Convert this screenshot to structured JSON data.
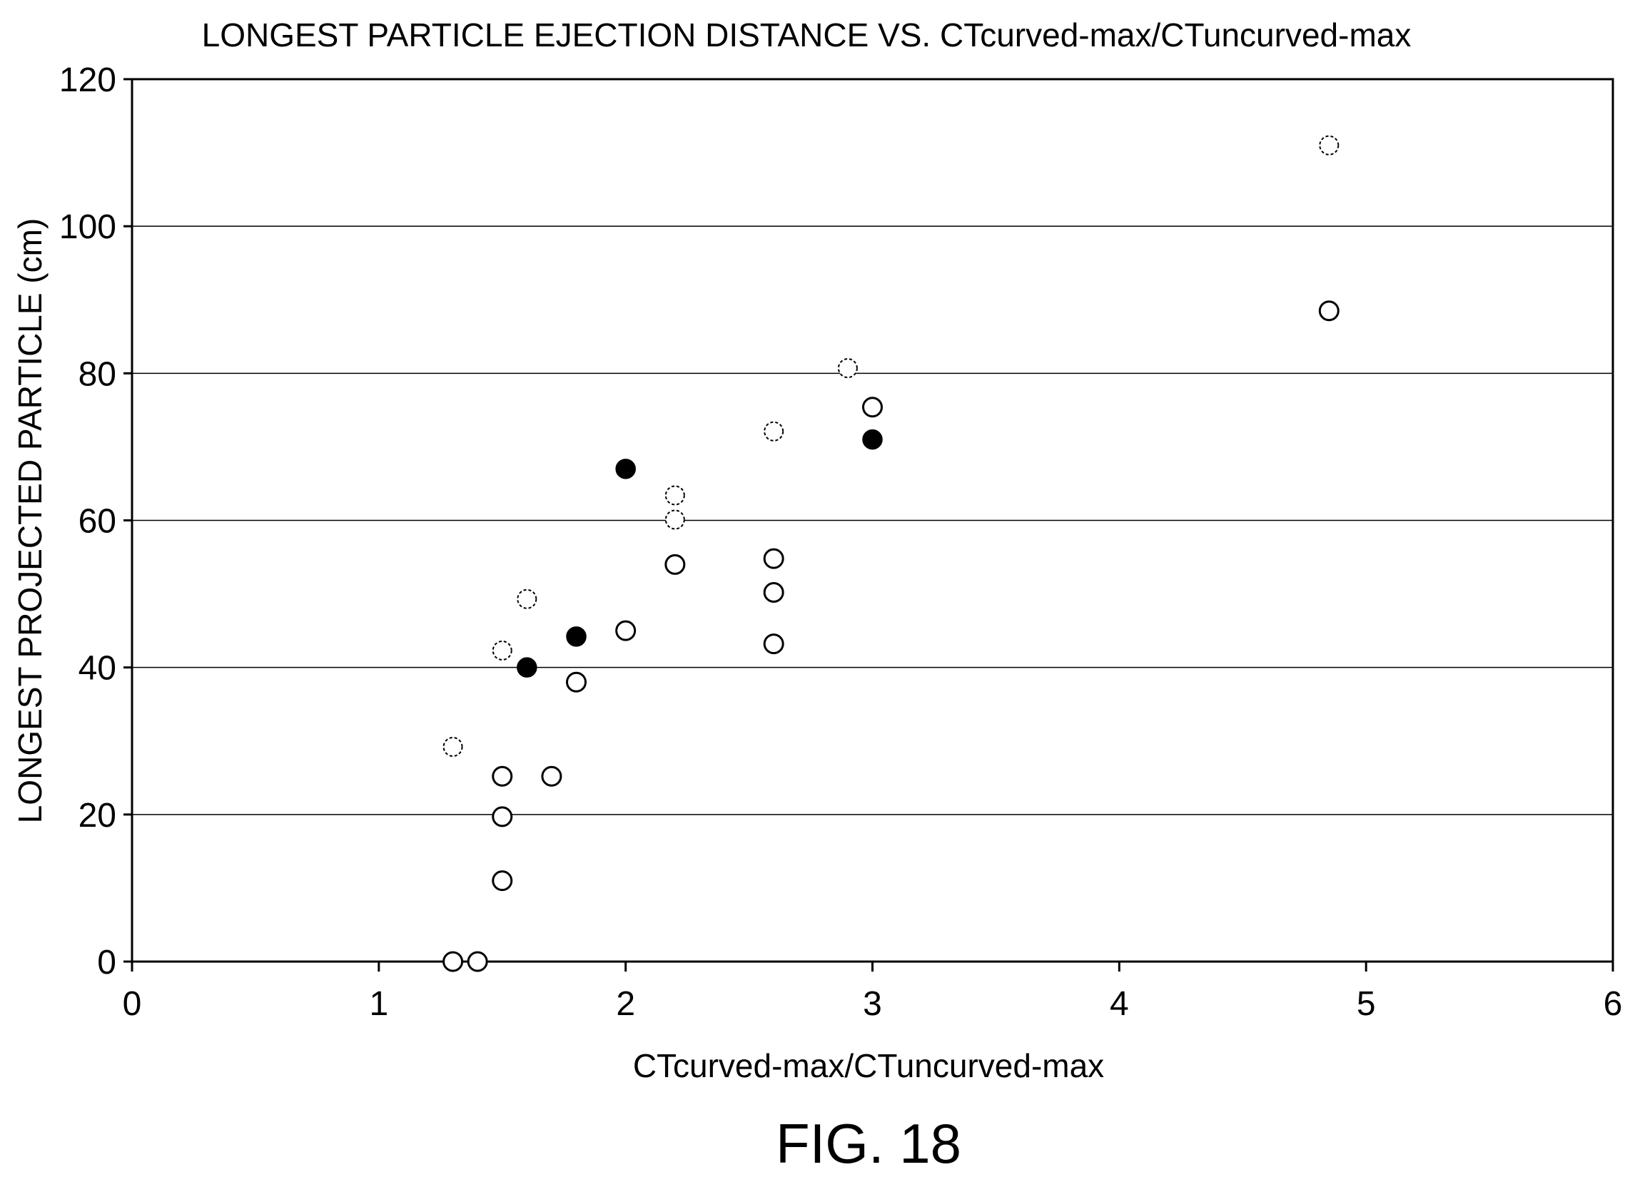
{
  "chart_data": {
    "type": "scatter",
    "title": "LONGEST PARTICLE EJECTION DISTANCE VS. CTcurved-max/CTuncurved-max",
    "xlabel": "CTcurved-max/CTuncurved-max",
    "ylabel": "LONGEST PROJECTED PARTICLE (cm)",
    "xlim": [
      0,
      6
    ],
    "ylim": [
      0,
      120
    ],
    "xticks": [
      "0",
      "1",
      "2",
      "3",
      "4",
      "5",
      "6"
    ],
    "yticks": [
      "0",
      "20",
      "40",
      "60",
      "80",
      "100",
      "120"
    ],
    "grid": "horizontal",
    "series": [
      {
        "marker": "open-circle",
        "points": [
          {
            "x": 1.3,
            "y": 0
          },
          {
            "x": 1.4,
            "y": 0
          },
          {
            "x": 1.5,
            "y": 11
          },
          {
            "x": 1.5,
            "y": 19.7
          },
          {
            "x": 1.5,
            "y": 25.2
          },
          {
            "x": 1.7,
            "y": 25.2
          },
          {
            "x": 1.8,
            "y": 38
          },
          {
            "x": 2.0,
            "y": 45
          },
          {
            "x": 2.2,
            "y": 54
          },
          {
            "x": 2.6,
            "y": 43.2
          },
          {
            "x": 2.6,
            "y": 50.2
          },
          {
            "x": 2.6,
            "y": 54.8
          },
          {
            "x": 3.0,
            "y": 75.4
          },
          {
            "x": 4.85,
            "y": 88.5
          }
        ]
      },
      {
        "marker": "filled-circle",
        "points": [
          {
            "x": 1.6,
            "y": 40
          },
          {
            "x": 1.8,
            "y": 44.2
          },
          {
            "x": 2.0,
            "y": 67
          },
          {
            "x": 3.0,
            "y": 71
          }
        ]
      },
      {
        "marker": "dashed-circle",
        "points": [
          {
            "x": 1.3,
            "y": 29.2
          },
          {
            "x": 1.5,
            "y": 42.3
          },
          {
            "x": 1.6,
            "y": 49.3
          },
          {
            "x": 2.2,
            "y": 60.1
          },
          {
            "x": 2.2,
            "y": 63.4
          },
          {
            "x": 2.6,
            "y": 72.1
          },
          {
            "x": 2.9,
            "y": 80.7
          },
          {
            "x": 4.85,
            "y": 111
          }
        ]
      }
    ]
  },
  "caption": "FIG. 18"
}
